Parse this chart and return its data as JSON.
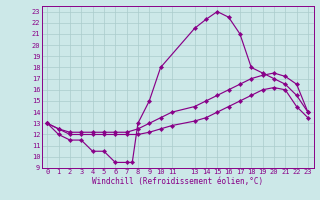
{
  "bg_color": "#cce8e8",
  "grid_color": "#aacccc",
  "line_color": "#880088",
  "xlabel": "Windchill (Refroidissement éolien,°C)",
  "xlim": [
    -0.5,
    23.5
  ],
  "ylim": [
    9,
    23.5
  ],
  "xticks": [
    0,
    1,
    2,
    3,
    4,
    5,
    6,
    7,
    8,
    9,
    10,
    11,
    13,
    14,
    15,
    16,
    17,
    18,
    19,
    20,
    21,
    22,
    23
  ],
  "yticks": [
    9,
    10,
    11,
    12,
    13,
    14,
    15,
    16,
    17,
    18,
    19,
    20,
    21,
    22,
    23
  ],
  "curve1_x": [
    0,
    1,
    2,
    3,
    4,
    5,
    6,
    7,
    7.5,
    8,
    9,
    10,
    13,
    14,
    15,
    16,
    17,
    18,
    19,
    20,
    21,
    22,
    23
  ],
  "curve1_y": [
    13,
    12,
    11.5,
    11.5,
    10.5,
    10.5,
    9.5,
    9.5,
    9.5,
    13.0,
    15.0,
    18.0,
    21.5,
    22.3,
    23.0,
    22.5,
    21.0,
    18.0,
    17.5,
    17.0,
    16.5,
    15.5,
    14.0
  ],
  "curve2_x": [
    0,
    1,
    2,
    3,
    4,
    5,
    6,
    7,
    8,
    9,
    10,
    11,
    13,
    14,
    15,
    16,
    17,
    18,
    19,
    20,
    21,
    22,
    23
  ],
  "curve2_y": [
    13.0,
    12.5,
    12.2,
    12.2,
    12.2,
    12.2,
    12.2,
    12.2,
    12.5,
    13.0,
    13.5,
    14.0,
    14.5,
    15.0,
    15.5,
    16.0,
    16.5,
    17.0,
    17.3,
    17.5,
    17.2,
    16.5,
    14.0
  ],
  "curve3_x": [
    0,
    1,
    2,
    3,
    4,
    5,
    6,
    7,
    8,
    9,
    10,
    11,
    13,
    14,
    15,
    16,
    17,
    18,
    19,
    20,
    21,
    22,
    23
  ],
  "curve3_y": [
    13.0,
    12.5,
    12.0,
    12.0,
    12.0,
    12.0,
    12.0,
    12.0,
    12.0,
    12.2,
    12.5,
    12.8,
    13.2,
    13.5,
    14.0,
    14.5,
    15.0,
    15.5,
    16.0,
    16.2,
    16.0,
    14.5,
    13.5
  ],
  "tick_fontsize": 5.0,
  "xlabel_fontsize": 5.5
}
